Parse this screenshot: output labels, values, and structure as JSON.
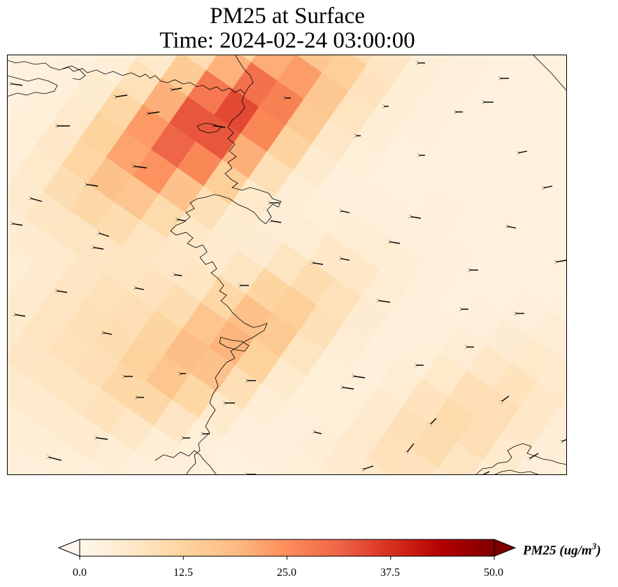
{
  "title": {
    "line1": "PM25 at Surface",
    "line2": "Time: 2024-02-24 03:00:00"
  },
  "colorbar": {
    "label_main": "PM25 (ug/m",
    "label_sup": "3",
    "label_close": ")",
    "ticks": [
      "0.0",
      "12.5",
      "25.0",
      "37.5",
      "50.0"
    ],
    "tick_values": [
      0,
      12.5,
      25,
      37.5,
      50
    ],
    "min": 0,
    "max": 50,
    "extend": "both",
    "colormap": "OrRd",
    "colors": [
      "#fff7ec",
      "#fee8c8",
      "#fdd49e",
      "#fdbb84",
      "#fc8d59",
      "#ef6548",
      "#d7301f",
      "#b30000",
      "#7f0000"
    ]
  },
  "map": {
    "field": "PM25",
    "frame_color": "#000000",
    "coastline_color": "#000000",
    "vector_color": "#000000",
    "vector_direction": "predominantly westward / north-westward",
    "hotspots": [
      {
        "name": "northern plume",
        "peak_value": 33
      },
      {
        "name": "central plume",
        "peak_value": 17
      },
      {
        "name": "southeastern plume",
        "peak_value": 8
      }
    ]
  }
}
